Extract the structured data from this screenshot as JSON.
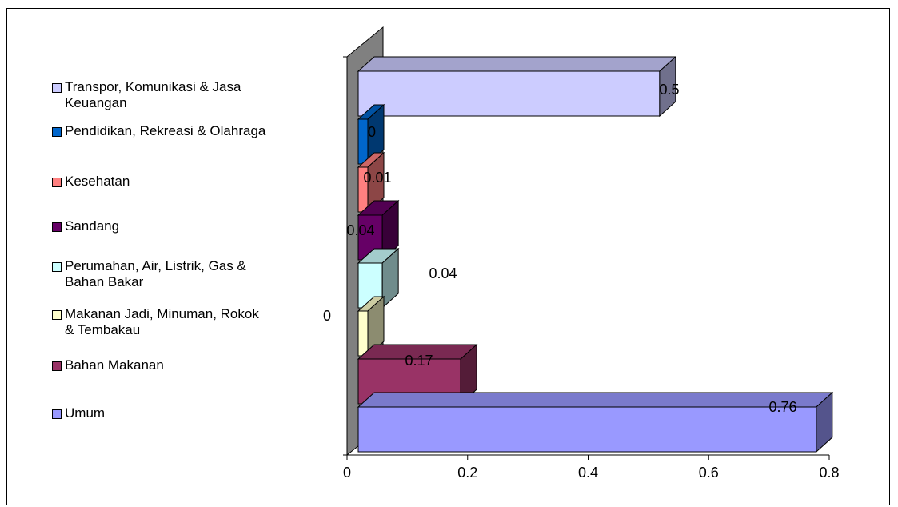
{
  "chart_data": {
    "type": "bar",
    "orientation": "horizontal",
    "three_d": true,
    "title": "",
    "xlabel": "",
    "ylabel": "",
    "xlim": [
      0,
      0.8
    ],
    "x_ticks": [
      "0",
      "0.2",
      "0.4",
      "0.6",
      "0.8"
    ],
    "categories": [
      "Umum",
      "Bahan Makanan",
      "Makanan Jadi, Minuman, Rokok\n& Tembakau",
      "Perumahan, Air, Listrik, Gas &\nBahan Bakar",
      "Sandang",
      "Kesehatan",
      "Pendidikan, Rekreasi  & Olahraga",
      "Transpor, Komunikasi & Jasa\nKeuangan"
    ],
    "values": [
      0.76,
      0.17,
      0.0,
      0.04,
      0.04,
      0.01,
      0.0,
      0.5
    ],
    "data_labels": [
      "0.76",
      "0.17",
      "0",
      "0.04",
      "0.04",
      "0.01",
      "0",
      "0.5"
    ],
    "colors": [
      "#9999ff",
      "#993366",
      "#ffffcc",
      "#ccffff",
      "#660066",
      "#ff8080",
      "#0066cc",
      "#ccccff"
    ],
    "legend_position": "left",
    "grid": false
  }
}
